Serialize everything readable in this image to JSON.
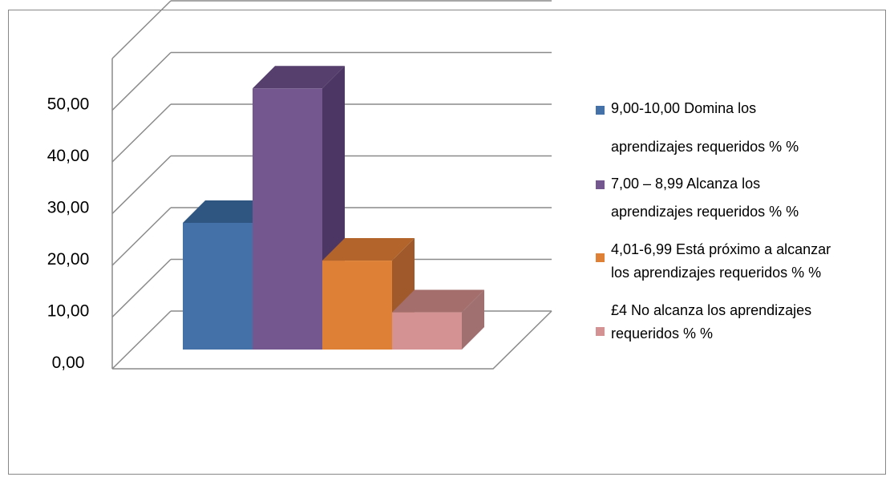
{
  "chart_data": {
    "type": "bar",
    "categories": [
      "9,00-10,00 Domina los aprendizajes requeridos % %",
      "7,00 – 8,99 Alcanza los aprendizajes requeridos % %",
      "4,01-6,99 Está próximo a alcanzar los aprendizajes requeridos % %",
      "£4 No alcanza los aprendizajes requeridos % %"
    ],
    "values": [
      24.5,
      50.5,
      17.2,
      7.2
    ],
    "ylim": [
      0,
      50
    ],
    "yticks": [
      "0,00",
      "10,00",
      "20,00",
      "30,00",
      "40,00",
      "50,00"
    ],
    "title": "",
    "xlabel": "",
    "ylabel": "",
    "grid": true,
    "legend_placement": "right",
    "colors": {
      "bars": [
        "#4472A8",
        "#73578E",
        "#DE8137",
        "#D49292"
      ],
      "tops": [
        "#2F5581",
        "#563F6D",
        "#B2642A",
        "#A36E6C"
      ],
      "sides": [
        "#2D4F78",
        "#4C3764",
        "#A0592A",
        "#A07070"
      ],
      "gridline": "#8a8a8a"
    },
    "legend": [
      {
        "line1": "9,00-10,00 Domina los",
        "line2": "aprendizajes requeridos % %"
      },
      {
        "line1": "7,00 – 8,99 Alcanza los",
        "line2": "aprendizajes requeridos % %"
      },
      {
        "line1": "4,01-6,99 Está próximo a alcanzar",
        "line2": "los aprendizajes requeridos % %"
      },
      {
        "line1": "£4 No alcanza los aprendizajes",
        "line2": "requeridos % %"
      }
    ]
  }
}
